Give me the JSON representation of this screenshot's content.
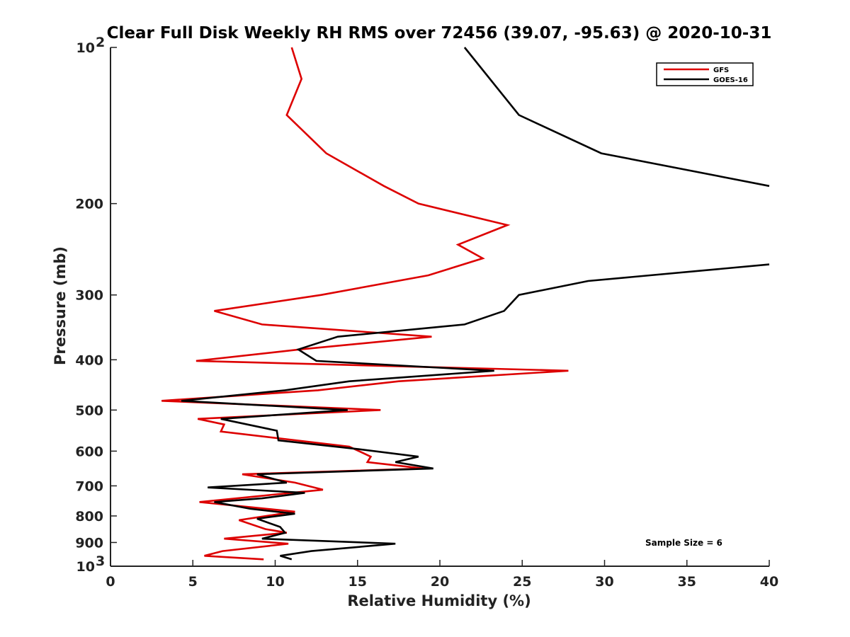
{
  "chart_data": {
    "type": "line",
    "title": "Clear Full Disk Weekly RH RMS over 72456 (39.07, -95.63) @ 2020-10-31",
    "xlabel": "Relative Humidity (%)",
    "ylabel": "Pressure (mb)",
    "xlim": [
      0,
      40
    ],
    "ylim": [
      100,
      1000
    ],
    "yscale": "log",
    "y_inverted": true,
    "x_ticks": [
      "0",
      "5",
      "10",
      "15",
      "20",
      "25",
      "30",
      "35",
      "40"
    ],
    "y_ticks": [
      {
        "value": 100,
        "base": "10",
        "exp": "2"
      },
      {
        "value": 200,
        "label": "200"
      },
      {
        "value": 300,
        "label": "300"
      },
      {
        "value": 400,
        "label": "400"
      },
      {
        "value": 500,
        "label": "500"
      },
      {
        "value": 600,
        "label": "600"
      },
      {
        "value": 700,
        "label": "700"
      },
      {
        "value": 800,
        "label": "800"
      },
      {
        "value": 900,
        "label": "900"
      },
      {
        "value": 1000,
        "base": "10",
        "exp": "3"
      }
    ],
    "legend_position": "top-right",
    "annotation": "Sample Size = 6",
    "series": [
      {
        "name": "GFS",
        "color": "#dd0000",
        "points": [
          [
            11.0,
            100
          ],
          [
            11.6,
            115
          ],
          [
            10.7,
            135
          ],
          [
            13.1,
            160
          ],
          [
            16.6,
            185
          ],
          [
            18.7,
            200
          ],
          [
            24.1,
            220
          ],
          [
            21.1,
            240
          ],
          [
            22.6,
            255
          ],
          [
            19.3,
            275
          ],
          [
            12.8,
            300
          ],
          [
            6.3,
            322
          ],
          [
            9.2,
            342
          ],
          [
            19.5,
            361
          ],
          [
            11.5,
            382
          ],
          [
            5.2,
            402
          ],
          [
            27.8,
            420
          ],
          [
            17.5,
            440
          ],
          [
            12.6,
            458
          ],
          [
            3.1,
            480
          ],
          [
            16.4,
            500
          ],
          [
            5.3,
            520
          ],
          [
            6.9,
            533
          ],
          [
            6.7,
            550
          ],
          [
            14.5,
            588
          ],
          [
            15.8,
            615
          ],
          [
            15.6,
            630
          ],
          [
            19.0,
            648
          ],
          [
            8.0,
            665
          ],
          [
            11.2,
            690
          ],
          [
            12.9,
            712
          ],
          [
            5.4,
            752
          ],
          [
            11.2,
            785
          ],
          [
            7.8,
            815
          ],
          [
            9.4,
            848
          ],
          [
            10.7,
            862
          ],
          [
            6.9,
            885
          ],
          [
            10.8,
            905
          ],
          [
            6.8,
            935
          ],
          [
            5.7,
            955
          ],
          [
            9.3,
            970
          ]
        ]
      },
      {
        "name": "GOES-16",
        "color": "#000000",
        "points": [
          [
            21.5,
            100
          ],
          [
            24.8,
            135
          ],
          [
            29.8,
            160
          ],
          [
            40.0,
            185
          ],
          [
            null,
            null
          ],
          [
            40.0,
            262
          ],
          [
            29.0,
            282
          ],
          [
            24.8,
            300
          ],
          [
            23.9,
            322
          ],
          [
            21.5,
            342
          ],
          [
            13.8,
            361
          ],
          [
            11.4,
            382
          ],
          [
            12.5,
            402
          ],
          [
            23.3,
            420
          ],
          [
            14.5,
            440
          ],
          [
            10.6,
            458
          ],
          [
            4.3,
            480
          ],
          [
            14.4,
            500
          ],
          [
            6.7,
            520
          ],
          [
            10.1,
            548
          ],
          [
            10.2,
            572
          ],
          [
            15.1,
            595
          ],
          [
            18.7,
            615
          ],
          [
            17.3,
            630
          ],
          [
            19.6,
            648
          ],
          [
            8.9,
            665
          ],
          [
            10.7,
            690
          ],
          [
            5.9,
            705
          ],
          [
            11.8,
            722
          ],
          [
            9.2,
            740
          ],
          [
            6.3,
            752
          ],
          [
            8.5,
            775
          ],
          [
            11.2,
            792
          ],
          [
            8.9,
            810
          ],
          [
            10.3,
            840
          ],
          [
            10.6,
            862
          ],
          [
            9.2,
            885
          ],
          [
            17.3,
            905
          ],
          [
            12.2,
            935
          ],
          [
            10.3,
            955
          ],
          [
            11.0,
            970
          ]
        ]
      }
    ]
  }
}
